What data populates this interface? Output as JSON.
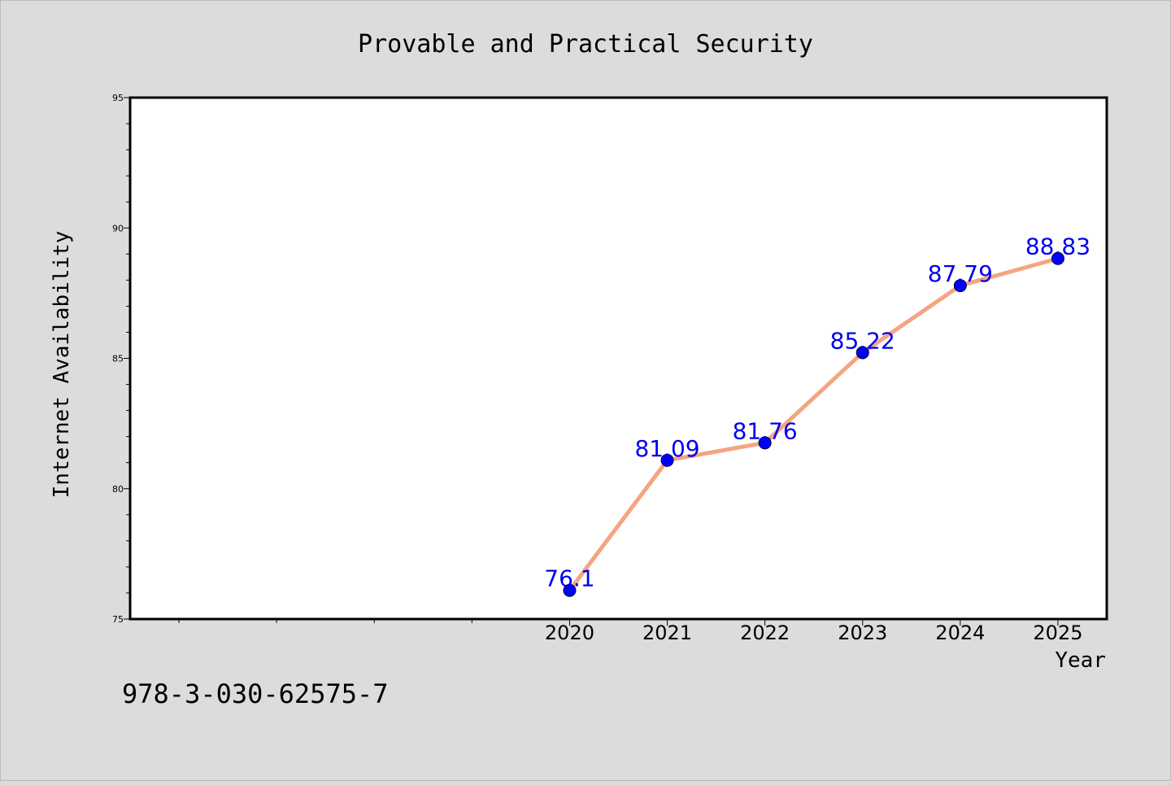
{
  "chart_data": {
    "type": "line",
    "title": "Provable and Practical Security",
    "xlabel": "Year",
    "ylabel": "Internet Availability",
    "x": [
      2020,
      2021,
      2022,
      2023,
      2024,
      2025
    ],
    "series": [
      {
        "values": [
          76.1,
          81.09,
          81.76,
          85.22,
          87.79,
          88.83
        ],
        "labels": [
          "76.1",
          "81.09",
          "81.76",
          "85.22",
          "87.79",
          "88.83"
        ]
      }
    ],
    "x_tick_labels": [
      "2020",
      "2021",
      "2022",
      "2023",
      "2024",
      "2025"
    ],
    "xlim": [
      2015.5,
      2025.5
    ],
    "ylim": [
      75,
      95
    ],
    "y_ticks": [
      75,
      80,
      85,
      90,
      95
    ],
    "y_tick_labels": [
      "75",
      "80",
      "85",
      "90",
      "95"
    ],
    "grid": false,
    "colors": {
      "line": "#f4a582",
      "marker": "#0000ff",
      "label": "#0000ee",
      "background": "#dcdcdc",
      "plot_background": "#ffffff"
    }
  },
  "footnote": "978-3-030-62575-7"
}
